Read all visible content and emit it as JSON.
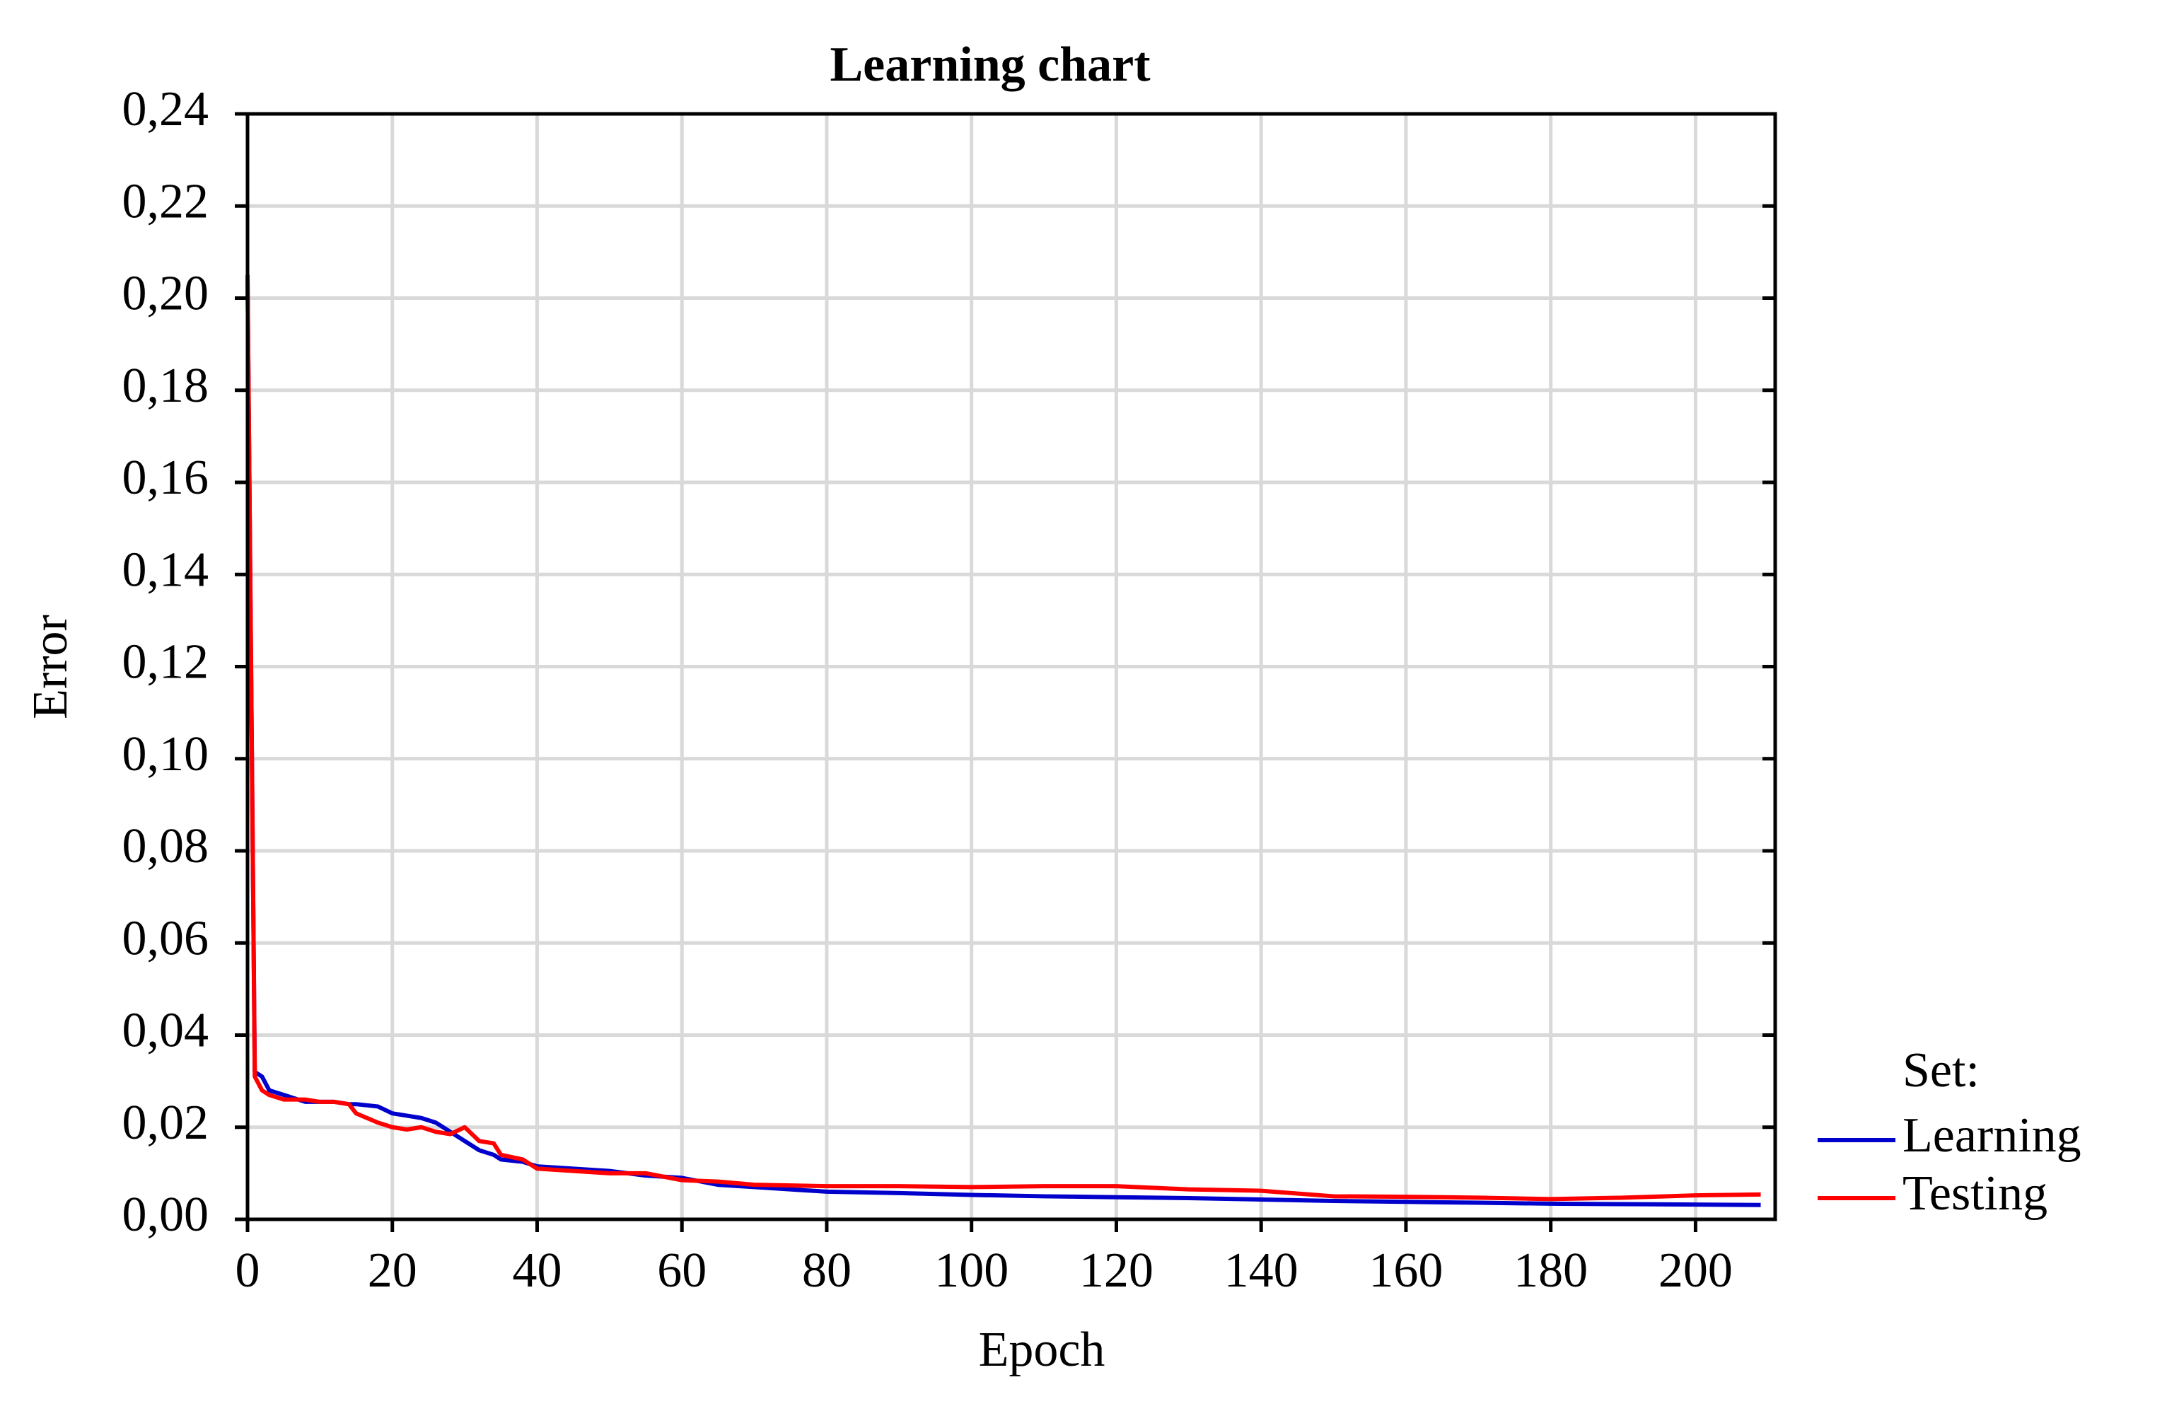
{
  "chart_data": {
    "type": "line",
    "title": "Learning chart",
    "x_label": "Epoch",
    "y_label": "Error",
    "x": [
      0,
      1,
      2,
      3,
      5,
      8,
      10,
      12,
      14,
      15,
      18,
      20,
      22,
      24,
      26,
      28,
      30,
      32,
      34,
      35,
      38,
      40,
      45,
      50,
      55,
      60,
      65,
      70,
      80,
      90,
      100,
      110,
      120,
      130,
      140,
      150,
      160,
      170,
      180,
      190,
      200,
      209
    ],
    "series": [
      {
        "name": "Learning",
        "color": "#0000cc",
        "values": [
          0.205,
          0.032,
          0.031,
          0.028,
          0.027,
          0.0255,
          0.0255,
          0.0255,
          0.025,
          0.025,
          0.0245,
          0.023,
          0.0225,
          0.022,
          0.021,
          0.019,
          0.017,
          0.015,
          0.014,
          0.013,
          0.0125,
          0.0115,
          0.011,
          0.0105,
          0.0095,
          0.009,
          0.0075,
          0.007,
          0.006,
          0.0057,
          0.0053,
          0.005,
          0.0048,
          0.0046,
          0.0043,
          0.004,
          0.0038,
          0.0036,
          0.0034,
          0.0033,
          0.0032,
          0.0031
        ]
      },
      {
        "name": "Testing",
        "color": "#ff0000",
        "values": [
          0.205,
          0.031,
          0.028,
          0.027,
          0.026,
          0.026,
          0.0255,
          0.0255,
          0.025,
          0.023,
          0.021,
          0.02,
          0.0195,
          0.02,
          0.019,
          0.0185,
          0.02,
          0.017,
          0.0165,
          0.014,
          0.013,
          0.011,
          0.0105,
          0.01,
          0.01,
          0.0085,
          0.0082,
          0.0075,
          0.0072,
          0.0072,
          0.007,
          0.0072,
          0.0072,
          0.0065,
          0.0062,
          0.005,
          0.0049,
          0.0047,
          0.0044,
          0.0047,
          0.0052,
          0.0054
        ]
      }
    ],
    "legend_title": "Set:",
    "legend": "bottom-right outside",
    "xlim": [
      0,
      211
    ],
    "xticks": [
      0,
      20,
      40,
      60,
      80,
      100,
      120,
      140,
      160,
      180,
      200
    ],
    "ylim": [
      0,
      0.24
    ],
    "yticks": [
      {
        "value": 0,
        "label": "0,00"
      },
      {
        "value": 0.02,
        "label": "0,02"
      },
      {
        "value": 0.04,
        "label": "0,04"
      },
      {
        "value": 0.06,
        "label": "0,06"
      },
      {
        "value": 0.08,
        "label": "0,08"
      },
      {
        "value": 0.1,
        "label": "0,10"
      },
      {
        "value": 0.12,
        "label": "0,12"
      },
      {
        "value": 0.14,
        "label": "0,14"
      },
      {
        "value": 0.16,
        "label": "0,16"
      },
      {
        "value": 0.18,
        "label": "0,18"
      },
      {
        "value": 0.2,
        "label": "0,20"
      },
      {
        "value": 0.22,
        "label": "0,22"
      },
      {
        "value": 0.24,
        "label": "0,24"
      }
    ],
    "grid": true
  }
}
